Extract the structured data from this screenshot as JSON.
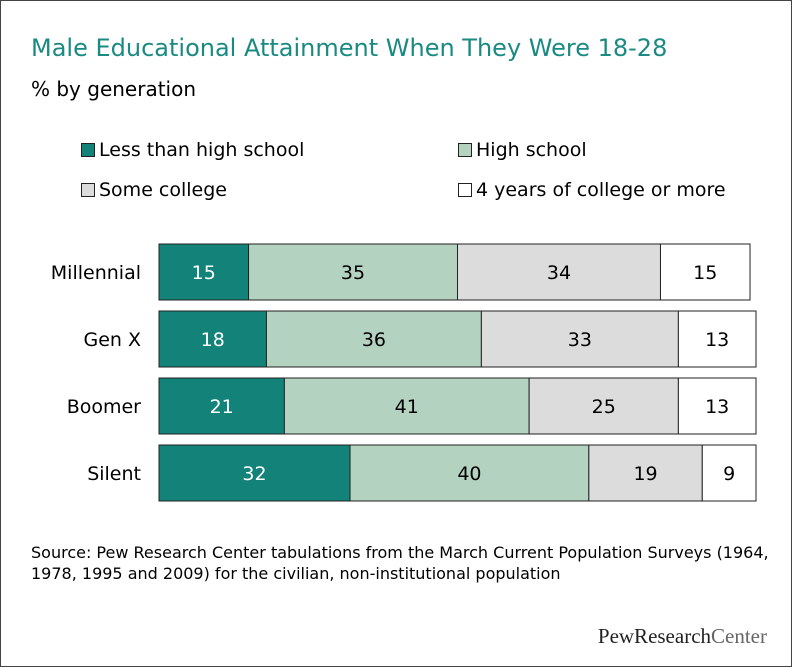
{
  "chart_data": {
    "type": "bar",
    "orientation": "horizontal",
    "stacked": true,
    "title": "Male Educational Attainment When They Were 18-28",
    "subtitle": "% by generation",
    "categories": [
      "Millennial",
      "Gen X",
      "Boomer",
      "Silent"
    ],
    "series": [
      {
        "name": "Less than high school",
        "color": "#13837a",
        "label_color": "#ffffff",
        "values": [
          15,
          18,
          21,
          32
        ]
      },
      {
        "name": "High school",
        "color": "#b3d2c0",
        "label_color": "#000000",
        "values": [
          35,
          36,
          41,
          40
        ]
      },
      {
        "name": "Some college",
        "color": "#dcdcdc",
        "label_color": "#000000",
        "values": [
          34,
          33,
          25,
          19
        ]
      },
      {
        "name": "4 years of college or more",
        "color": "#ffffff",
        "label_color": "#000000",
        "values": [
          15,
          13,
          13,
          9
        ]
      }
    ],
    "xlim": [
      0,
      100
    ],
    "grid": false,
    "legend_position": "top"
  },
  "source": "Source: Pew Research Center tabulations from the March Current Population Surveys (1964, 1978, 1995 and 2009) for the civilian, non-institutional population",
  "logo": {
    "part1": "PewResearch",
    "part2": "Center"
  }
}
